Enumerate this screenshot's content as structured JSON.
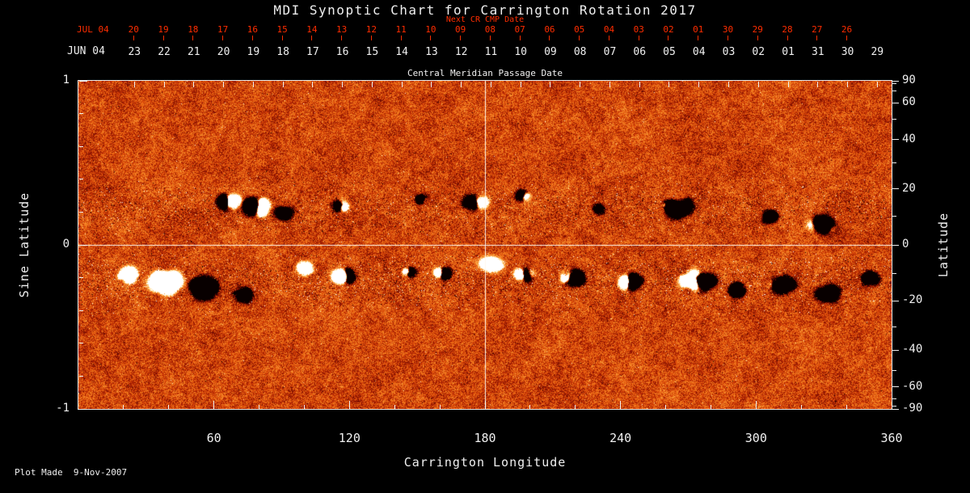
{
  "title": "MDI Synoptic Chart for Carrington Rotation 2017",
  "footer": "Plot Made  9-Nov-2007",
  "colors": {
    "background": "#000000",
    "foreground": "#f0f0f0",
    "red_axis": "#ff2d00"
  },
  "top_axis_red": {
    "label": "Next CR CMP Date",
    "month": "JUL 04",
    "dates": [
      "20",
      "19",
      "18",
      "17",
      "16",
      "15",
      "14",
      "13",
      "12",
      "11",
      "10",
      "09",
      "08",
      "07",
      "06",
      "05",
      "04",
      "03",
      "02",
      "01",
      "30",
      "29",
      "28",
      "27",
      "26"
    ]
  },
  "top_axis_white": {
    "title": "Central Meridian Passage Date",
    "month": "JUN 04",
    "dates": [
      "23",
      "22",
      "21",
      "20",
      "19",
      "18",
      "17",
      "16",
      "15",
      "14",
      "13",
      "12",
      "11",
      "10",
      "09",
      "08",
      "07",
      "06",
      "05",
      "04",
      "03",
      "02",
      "01",
      "31",
      "30",
      "29"
    ]
  },
  "left_axis": {
    "title": "Sine Latitude",
    "ticks": [
      {
        "label": "1",
        "value": 1
      },
      {
        "label": "0",
        "value": 0
      },
      {
        "label": "-1",
        "value": -1
      }
    ]
  },
  "right_axis": {
    "title": "Latitude",
    "ticks": [
      {
        "label": "90",
        "value": 90
      },
      {
        "label": "60",
        "value": 60
      },
      {
        "label": "40",
        "value": 40
      },
      {
        "label": "20",
        "value": 20
      },
      {
        "label": "0",
        "value": 0
      },
      {
        "label": "-20",
        "value": -20
      },
      {
        "label": "-40",
        "value": -40
      },
      {
        "label": "-60",
        "value": -60
      },
      {
        "label": "-90",
        "value": -90
      }
    ]
  },
  "bottom_axis": {
    "title": "Carrington Longitude",
    "ticks": [
      {
        "label": "60",
        "value": 60
      },
      {
        "label": "120",
        "value": 120
      },
      {
        "label": "180",
        "value": 180
      },
      {
        "label": "240",
        "value": 240
      },
      {
        "label": "300",
        "value": 300
      },
      {
        "label": "360",
        "value": 360
      }
    ]
  },
  "chart_data": {
    "type": "heatmap",
    "title": "MDI Synoptic Chart for Carrington Rotation 2017",
    "carrington_rotation": 2017,
    "xlabel": "Carrington Longitude",
    "ylabel_left": "Sine Latitude",
    "ylabel_right": "Latitude",
    "xlim": [
      0,
      360
    ],
    "ylim_sine_latitude": [
      -1,
      1
    ],
    "x_ticks": [
      60,
      120,
      180,
      240,
      300,
      360
    ],
    "left_ticks_sine_latitude": [
      1,
      0,
      -1
    ],
    "right_ticks_latitude": [
      90,
      60,
      40,
      20,
      0,
      -20,
      -40,
      -60,
      -90
    ],
    "colormap": "signed magnetic field: black (strong negative) - red/orange (weak) - white (strong positive)",
    "reference_lines": {
      "longitude": 180,
      "sine_latitude": 0
    },
    "description": "Full-surface solar magnetogram for one Carrington rotation; speckled orange background of weak mixed field with bipolar active regions concentrated in two latitude bands near sine latitude +0.25 and -0.25.",
    "active_regions": [
      {
        "lon": 66,
        "sin_lat": 0.27,
        "extent_deg": 7,
        "polarity": "bipolar",
        "strength": 0.95
      },
      {
        "lon": 79,
        "sin_lat": 0.23,
        "extent_deg": 8,
        "polarity": "bipolar",
        "strength": 0.95
      },
      {
        "lon": 91,
        "sin_lat": 0.2,
        "extent_deg": 4,
        "polarity": "negative",
        "strength": 0.7
      },
      {
        "lon": 116,
        "sin_lat": 0.24,
        "extent_deg": 4,
        "polarity": "bipolar",
        "strength": 0.55
      },
      {
        "lon": 152,
        "sin_lat": 0.28,
        "extent_deg": 3,
        "polarity": "bipolar",
        "strength": 0.35
      },
      {
        "lon": 176,
        "sin_lat": 0.26,
        "extent_deg": 8,
        "polarity": "bipolar",
        "strength": 0.4
      },
      {
        "lon": 197,
        "sin_lat": 0.3,
        "extent_deg": 4,
        "polarity": "bipolar",
        "strength": 0.35
      },
      {
        "lon": 230,
        "sin_lat": 0.22,
        "extent_deg": 3,
        "polarity": "negative",
        "strength": 0.4
      },
      {
        "lon": 266,
        "sin_lat": 0.23,
        "extent_deg": 9,
        "polarity": "negative",
        "strength": 0.7
      },
      {
        "lon": 306,
        "sin_lat": 0.18,
        "extent_deg": 4,
        "polarity": "negative",
        "strength": 0.5
      },
      {
        "lon": 330,
        "sin_lat": 0.13,
        "extent_deg": 8,
        "polarity": "negative",
        "strength": 0.75
      },
      {
        "lon": 22,
        "sin_lat": -0.18,
        "extent_deg": 6,
        "polarity": "positive",
        "strength": 0.85
      },
      {
        "lon": 38,
        "sin_lat": -0.22,
        "extent_deg": 10,
        "polarity": "positive",
        "strength": 1.0
      },
      {
        "lon": 56,
        "sin_lat": -0.26,
        "extent_deg": 9,
        "polarity": "negative",
        "strength": 1.0
      },
      {
        "lon": 72,
        "sin_lat": -0.3,
        "extent_deg": 5,
        "polarity": "negative",
        "strength": 0.7
      },
      {
        "lon": 100,
        "sin_lat": -0.14,
        "extent_deg": 4,
        "polarity": "positive",
        "strength": 0.5
      },
      {
        "lon": 118,
        "sin_lat": -0.19,
        "extent_deg": 6,
        "polarity": "bipolar",
        "strength": 0.7
      },
      {
        "lon": 146,
        "sin_lat": -0.16,
        "extent_deg": 3,
        "polarity": "bipolar",
        "strength": 0.5
      },
      {
        "lon": 161,
        "sin_lat": -0.17,
        "extent_deg": 4,
        "polarity": "bipolar",
        "strength": 0.6
      },
      {
        "lon": 183,
        "sin_lat": -0.12,
        "extent_deg": 6,
        "polarity": "positive",
        "strength": 0.55
      },
      {
        "lon": 197,
        "sin_lat": -0.18,
        "extent_deg": 5,
        "polarity": "bipolar",
        "strength": 0.65
      },
      {
        "lon": 218,
        "sin_lat": -0.2,
        "extent_deg": 7,
        "polarity": "bipolar",
        "strength": 0.8
      },
      {
        "lon": 244,
        "sin_lat": -0.22,
        "extent_deg": 6,
        "polarity": "bipolar",
        "strength": 0.75
      },
      {
        "lon": 274,
        "sin_lat": -0.22,
        "extent_deg": 9,
        "polarity": "bipolar",
        "strength": 1.0
      },
      {
        "lon": 292,
        "sin_lat": -0.28,
        "extent_deg": 5,
        "polarity": "negative",
        "strength": 0.6
      },
      {
        "lon": 312,
        "sin_lat": -0.24,
        "extent_deg": 8,
        "polarity": "negative",
        "strength": 0.55
      },
      {
        "lon": 332,
        "sin_lat": -0.3,
        "extent_deg": 8,
        "polarity": "negative",
        "strength": 0.5
      },
      {
        "lon": 350,
        "sin_lat": -0.2,
        "extent_deg": 5,
        "polarity": "negative",
        "strength": 0.4
      }
    ]
  }
}
